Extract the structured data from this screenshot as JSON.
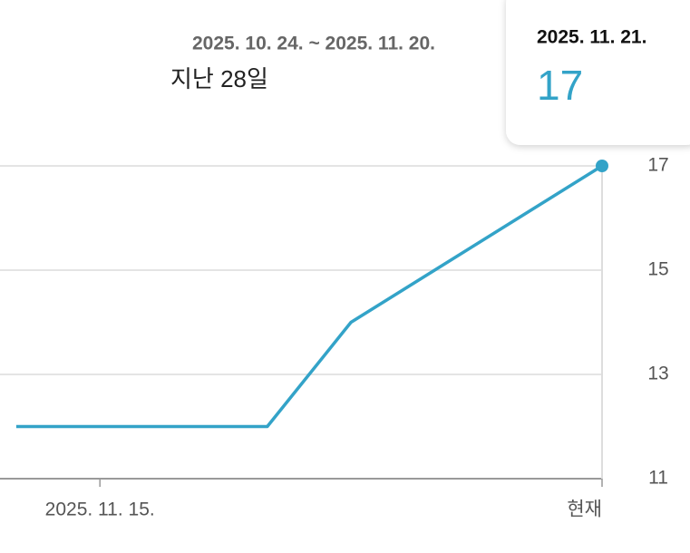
{
  "chart_data": {
    "type": "line",
    "period": "2025. 10. 24. ~ 2025. 11. 20.",
    "period_name": "지난 28일",
    "categories": [
      null,
      "2025. 11. 15.",
      null,
      null,
      null,
      null,
      null,
      "현재"
    ],
    "series": [
      {
        "color": "#33a3c8",
        "values": [
          12,
          12,
          12,
          12,
          14,
          15,
          16,
          17
        ]
      }
    ],
    "ylim": [
      11,
      17
    ],
    "yticks": [
      11,
      13,
      15,
      17
    ],
    "grid": true,
    "tooltip": {
      "date": "2025. 11. 21.",
      "value": 17
    }
  }
}
